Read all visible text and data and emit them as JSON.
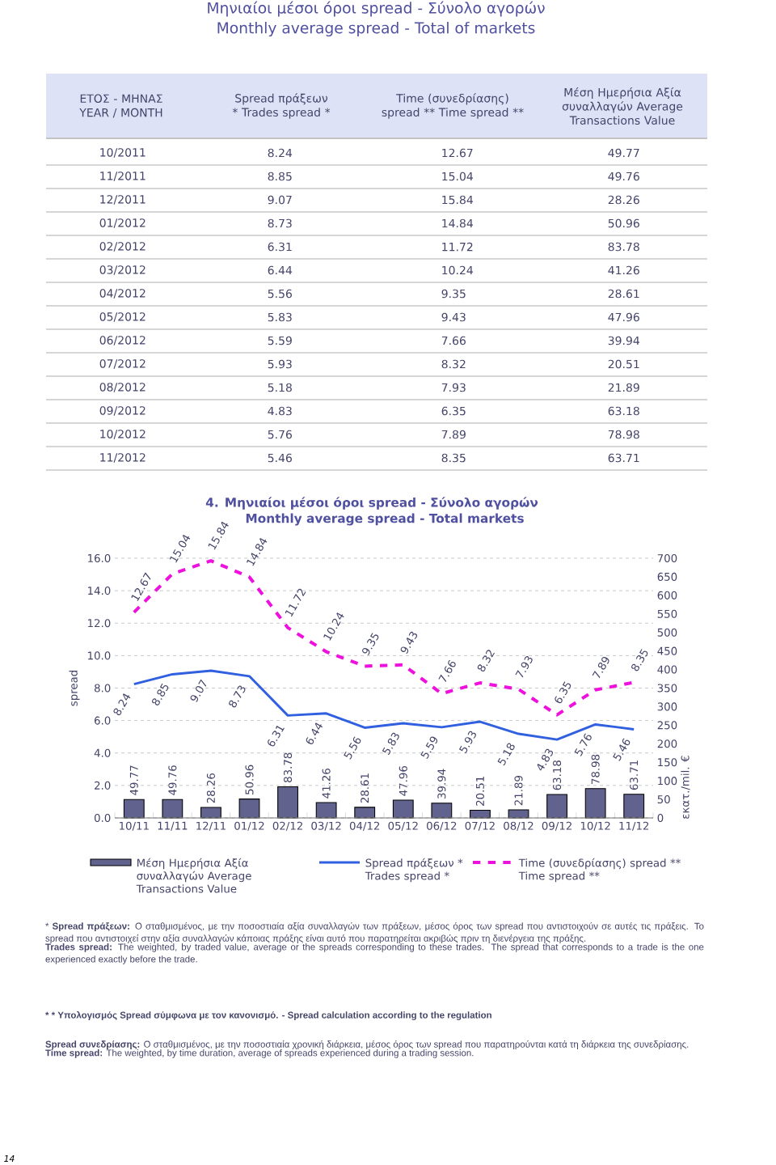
{
  "chart_data": [
    {
      "type": "other",
      "title": "Μηνιαίοι μέσοι όροι spread - Σύνολο αγορών",
      "subtitle": "Monthly average spread - Total of markets",
      "xlabel": "ΕΤΟΣ - ΜΗΝΑΣ YEAR / MONTH",
      "data_labels": true,
      "categories": [
        "10/2011",
        "11/2011",
        "12/2011",
        "01/2012",
        "02/2012",
        "03/2012",
        "04/2012",
        "05/2012",
        "06/2012",
        "07/2012",
        "08/2012",
        "09/2012",
        "10/2012",
        "11/2012"
      ],
      "series": [
        {
          "name": "Spread πράξεων * Trades spread *",
          "values": [
            8.24,
            8.85,
            9.07,
            8.73,
            6.31,
            6.44,
            5.56,
            5.83,
            5.59,
            5.93,
            5.18,
            4.83,
            5.76,
            5.46
          ]
        },
        {
          "name": "Time  (συνεδρίασης) spread ** Time spread **",
          "values": [
            12.67,
            15.04,
            15.84,
            14.84,
            11.72,
            10.24,
            9.35,
            9.43,
            7.66,
            8.32,
            7.93,
            6.35,
            7.89,
            8.35
          ]
        },
        {
          "name": "Μέση Ημερήσια Αξία συναλλαγών Average Transactions Value",
          "values": [
            49.77,
            49.76,
            28.26,
            50.96,
            83.78,
            41.26,
            28.61,
            47.96,
            39.94,
            20.51,
            21.89,
            63.18,
            78.98,
            63.71
          ]
        }
      ]
    },
    {
      "type": "line",
      "title": "4. Μηνιαίοι μέσοι όροι spread - Σύνολο αγορών",
      "subtitle": "Monthly average spread - Total markets",
      "ylabel": "spread",
      "y2label": "εκατ./mil. €",
      "categories": [
        "10/11",
        "11/11",
        "12/11",
        "01/12",
        "02/12",
        "03/12",
        "04/12",
        "05/12",
        "06/12",
        "07/12",
        "08/12",
        "09/12",
        "10/12",
        "11/12"
      ],
      "series": [
        {
          "name": "Μέση Ημερήσια Αξία συναλλαγών Average Transactions Value",
          "type": "bar",
          "axis": "y2",
          "color": "#62628f",
          "values": [
            49.77,
            49.76,
            28.26,
            50.96,
            83.78,
            41.26,
            28.61,
            47.96,
            39.94,
            20.51,
            21.89,
            63.18,
            78.98,
            63.71
          ]
        },
        {
          "name": "Spread πράξεων * Trades spread *",
          "type": "line",
          "color": "#3060e0",
          "line_style": "solid",
          "values": [
            8.24,
            8.85,
            9.07,
            8.73,
            6.31,
            6.44,
            5.56,
            5.83,
            5.59,
            5.93,
            5.18,
            4.83,
            5.76,
            5.46
          ]
        },
        {
          "name": "Time  (συνεδρίασης) spread ** Time spread **",
          "type": "line",
          "color": "#ee10dd",
          "line_style": "dashed",
          "values": [
            12.67,
            15.04,
            15.84,
            14.84,
            11.72,
            10.24,
            9.35,
            9.43,
            7.66,
            8.32,
            7.93,
            6.35,
            7.89,
            8.35
          ]
        }
      ],
      "ylim": [
        0,
        16
      ],
      "yticks": [
        {
          "value": 0,
          "label": "0.0"
        },
        {
          "value": 2,
          "label": "2.0"
        },
        {
          "value": 4,
          "label": "4.0"
        },
        {
          "value": 6,
          "label": "6.0"
        },
        {
          "value": 8,
          "label": "8.0"
        },
        {
          "value": 10,
          "label": "10.0"
        },
        {
          "value": 12,
          "label": "12.0"
        },
        {
          "value": 14,
          "label": "14.0"
        },
        {
          "value": 16,
          "label": "16.0"
        }
      ],
      "y2lim": [
        0,
        700
      ],
      "y2ticks": [
        0,
        50,
        100,
        150,
        200,
        250,
        300,
        350,
        400,
        450,
        500,
        550,
        600,
        650,
        700
      ],
      "grid": "y",
      "legend": "bottom",
      "marker": "none",
      "data_labels": true,
      "annotations": [
        "* **Spread πράξεων:** Ο σταθμισμένος, με την ποσοστιαία αξία συναλλαγών των πράξεων, μέσος όρος των spread που αντιστοιχούν σε αυτές τις πράξεις. Το spread που αντιστοιχεί στην αξία συναλλαγών κάποιας πράξης είναι αυτό που παρατηρείται ακριβώς πριν τη διενέργεια της πράξης.",
        "**Trades spread:** The weighted, by traded value, average or the spreads corresponding to these trades. The spread that corresponds to a trade is the one experienced exactly before the trade.",
        "* * Υπολογισμός Spread σύμφωνα με τον κανονισμό. - Spread calculation according to the regulation",
        "**Spread συνεδρίασης:** Ο σταθμισμένος, με την ποσοστιαία χρονική διάρκεια, μέσος όρος των spread που παρατηρούνται κατά τη διάρκεια της συνεδρίασης.",
        "**Time spread:** The weighted, by time duration, average of spreads experienced during a trading session.",
        "14"
      ]
    }
  ]
}
